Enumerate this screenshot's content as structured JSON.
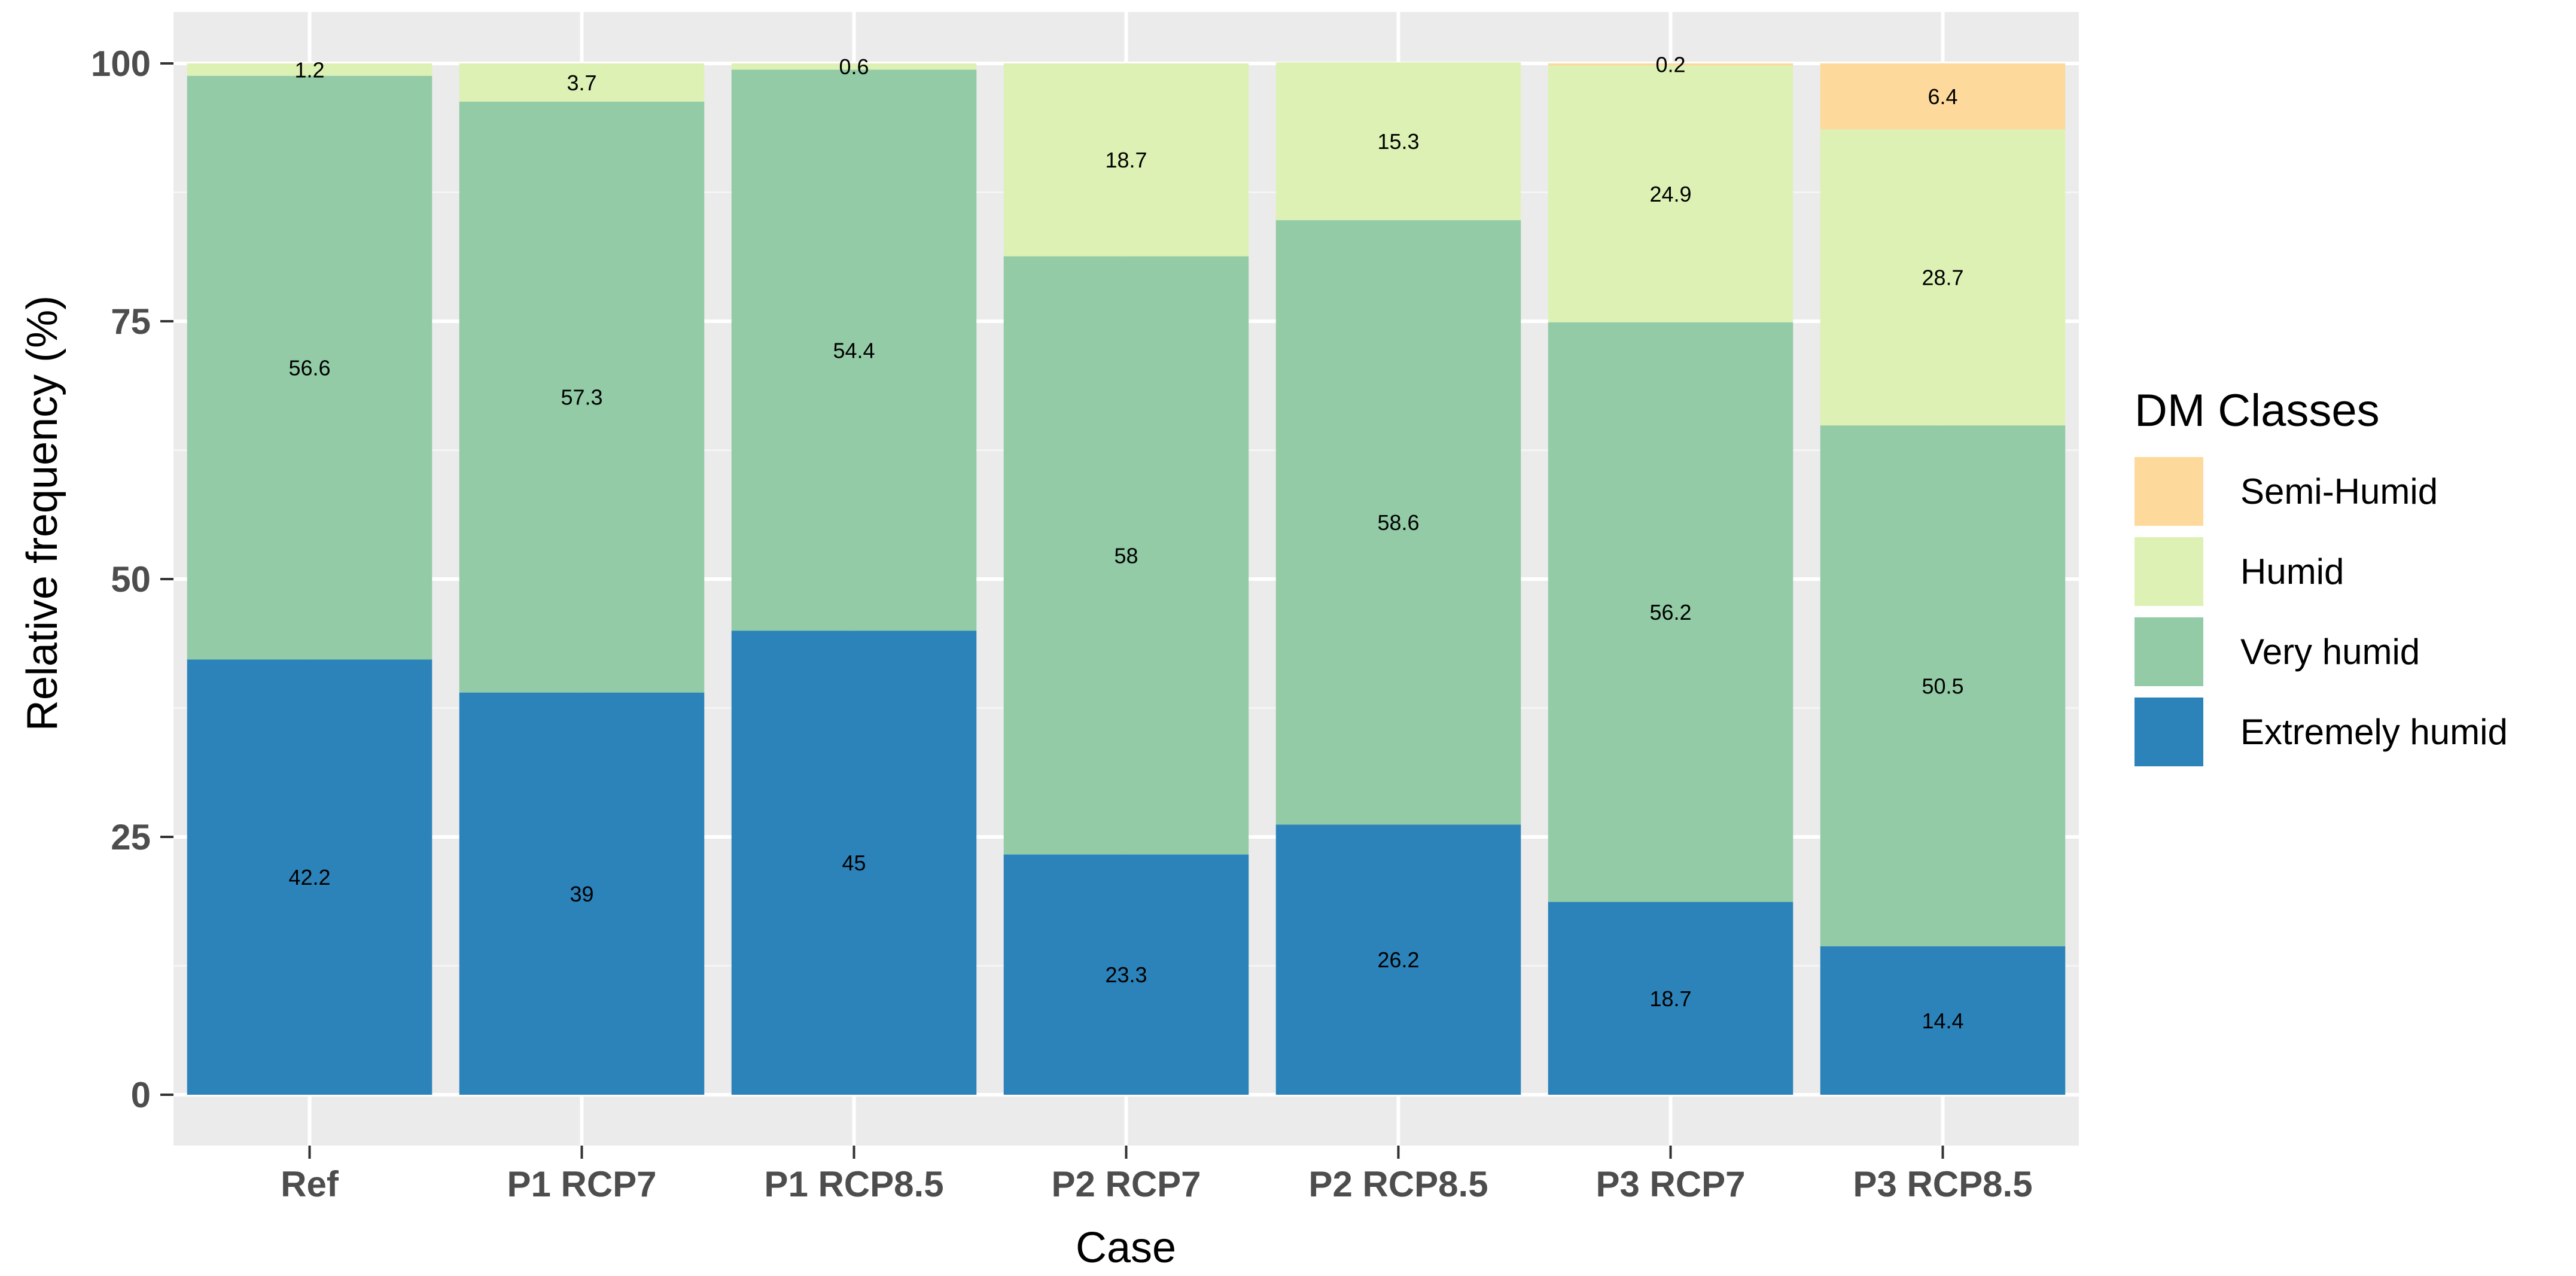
{
  "chart_data": {
    "type": "bar",
    "stacked": true,
    "xlabel": "Case",
    "ylabel": "Relative frequency (%)",
    "ylim": [
      0,
      100
    ],
    "yticks": [
      0,
      25,
      50,
      75,
      100
    ],
    "grid": true,
    "categories": [
      "Ref",
      "P1 RCP7",
      "P1 RCP8.5",
      "P2 RCP7",
      "P2 RCP8.5",
      "P3 RCP7",
      "P3 RCP8.5"
    ],
    "series": [
      {
        "name": "Extremely humid",
        "color": "#2b83ba",
        "values": [
          42.2,
          39,
          45,
          23.3,
          26.2,
          18.7,
          14.4
        ],
        "labels": [
          "42.2",
          "39",
          "45",
          "23.3",
          "26.2",
          "18.7",
          "14.4"
        ]
      },
      {
        "name": "Very humid",
        "color": "#92cba6",
        "values": [
          56.6,
          57.3,
          54.4,
          58,
          58.6,
          56.2,
          50.5
        ],
        "labels": [
          "56.6",
          "57.3",
          "54.4",
          "58",
          "58.6",
          "56.2",
          "50.5"
        ]
      },
      {
        "name": "Humid",
        "color": "#ddf1b4",
        "values": [
          1.2,
          3.7,
          0.6,
          18.7,
          15.3,
          24.9,
          28.7
        ],
        "labels": [
          "1.2",
          "3.7",
          "0.6",
          "18.7",
          "15.3",
          "24.9",
          "28.7"
        ]
      },
      {
        "name": "Semi-Humid",
        "color": "#fdd99b",
        "values": [
          0,
          0,
          0,
          0,
          0,
          0.2,
          6.4
        ],
        "labels": [
          "",
          "",
          "",
          "",
          "",
          "0.2",
          "6.4"
        ]
      }
    ],
    "legend": {
      "title": "DM Classes",
      "position": "right",
      "order": [
        "Semi-Humid",
        "Humid",
        "Very humid",
        "Extremely humid"
      ]
    },
    "colors": {
      "panel": "#ebebeb",
      "grid_major": "#ffffff",
      "grid_minor": "#f5f5f5"
    }
  }
}
